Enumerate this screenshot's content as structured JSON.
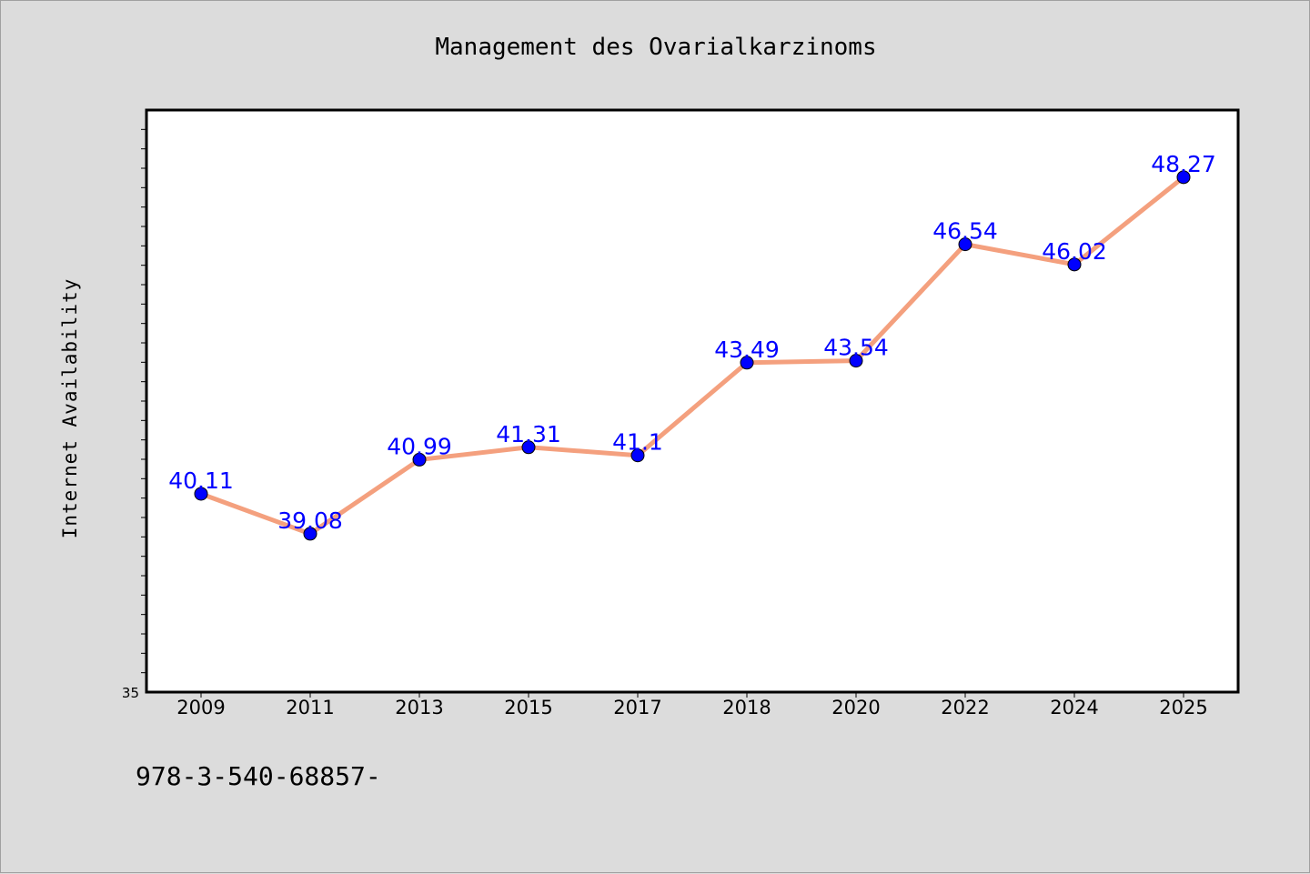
{
  "chart_data": {
    "type": "line",
    "title": "Management des Ovarialkarzinoms",
    "xlabel": "",
    "ylabel": "Internet Availability",
    "categories": [
      "2009",
      "2011",
      "2013",
      "2015",
      "2017",
      "2018",
      "2020",
      "2022",
      "2024",
      "2025"
    ],
    "series": [
      {
        "values": [
          40.11,
          39.08,
          40.99,
          41.31,
          41.1,
          43.49,
          43.54,
          46.54,
          46.02,
          48.27
        ]
      }
    ],
    "data_labels": [
      "40.11",
      "39.08",
      "40.99",
      "41.31",
      "41.1",
      "43.49",
      "43.54",
      "46.54",
      "46.02",
      "48.27"
    ],
    "ylim": [
      35,
      50
    ],
    "ytick_labels": [
      "35"
    ],
    "grid": false,
    "colors": {
      "line": "#f4a07e",
      "marker": "#0000ff",
      "data_label": "#0000ff"
    }
  },
  "footer": {
    "text": "978-3-540-68857-"
  }
}
